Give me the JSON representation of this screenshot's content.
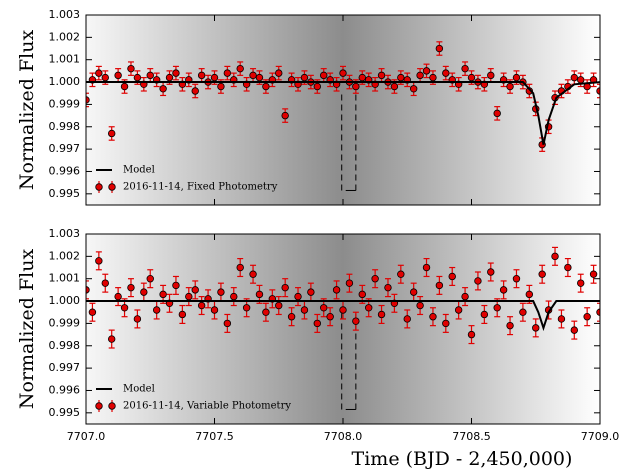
{
  "chart_data": [
    {
      "type": "scatter",
      "ylabel": "Normalized Flux",
      "xlim": [
        7707.0,
        7709.0
      ],
      "xticks": [
        7707,
        7707.5,
        7708,
        7708.5,
        7709
      ],
      "ylim": [
        0.9945,
        1.003
      ],
      "yticks": [
        0.995,
        0.996,
        0.997,
        0.998,
        0.999,
        {
          "value": 1,
          "label": "1.000"
        },
        1.001,
        1.002,
        1.003
      ],
      "window": {
        "x": [
          7707.995,
          7708.05
        ],
        "y": [
          0.99515,
          0.9995
        ]
      },
      "legend": "lower left",
      "series": [
        {
          "name": "Model",
          "kind": "line",
          "color": "#000000",
          "x": [
            7707.0,
            7708.7,
            7708.74,
            7708.76,
            7708.78,
            7708.8,
            7708.83,
            7708.9,
            7709.0
          ],
          "values": [
            1.0,
            1.0,
            0.9995,
            0.9985,
            0.9972,
            0.9983,
            0.9993,
            0.9999,
            1.0
          ]
        },
        {
          "name": "2016-11-14, Fixed Photometry",
          "kind": "points",
          "color": "#e00000",
          "error": 0.0003,
          "x": [
            7707.0,
            7707.025,
            7707.05,
            7707.075,
            7707.1,
            7707.125,
            7707.15,
            7707.175,
            7707.2,
            7707.225,
            7707.25,
            7707.275,
            7707.3,
            7707.325,
            7707.35,
            7707.375,
            7707.4,
            7707.425,
            7707.45,
            7707.475,
            7707.5,
            7707.525,
            7707.55,
            7707.575,
            7707.6,
            7707.625,
            7707.65,
            7707.675,
            7707.7,
            7707.725,
            7707.75,
            7707.775,
            7707.8,
            7707.825,
            7707.85,
            7707.875,
            7707.9,
            7707.925,
            7707.95,
            7707.975,
            7708.0,
            7708.025,
            7708.05,
            7708.075,
            7708.1,
            7708.125,
            7708.15,
            7708.175,
            7708.2,
            7708.225,
            7708.25,
            7708.275,
            7708.3,
            7708.325,
            7708.35,
            7708.375,
            7708.4,
            7708.425,
            7708.45,
            7708.475,
            7708.5,
            7708.525,
            7708.55,
            7708.575,
            7708.6,
            7708.625,
            7708.65,
            7708.675,
            7708.7,
            7708.725,
            7708.75,
            7708.775,
            7708.8,
            7708.825,
            7708.85,
            7708.875,
            7708.9,
            7708.925,
            7708.95,
            7708.975,
            7709.0
          ],
          "values": [
            0.9992,
            1.0001,
            1.0004,
            1.0002,
            0.9977,
            1.0003,
            0.9998,
            1.0006,
            1.0002,
            0.9999,
            1.0003,
            1.0001,
            0.9997,
            1.0002,
            1.0004,
            0.9999,
            1.0001,
            0.9996,
            1.0003,
            1.0,
            1.0002,
            0.9998,
            1.0004,
            1.0001,
            1.0006,
            0.9999,
            1.0003,
            1.0002,
            0.9998,
            1.0001,
            1.0004,
            0.9985,
            1.0001,
            0.9999,
            1.0002,
            1.0,
            0.9998,
            1.0003,
            1.0001,
            0.9999,
            1.0004,
            1.0,
            0.9998,
            1.0002,
            1.0001,
            0.9999,
            1.0003,
            1.0,
            0.9998,
            1.0002,
            1.0001,
            0.9997,
            1.0003,
            1.0005,
            1.0002,
            1.0015,
            1.0004,
            1.0001,
            0.9999,
            1.0006,
            1.0002,
            1.0,
            0.9999,
            1.0003,
            0.9986,
            1.0001,
            0.9998,
            1.0002,
            1.0,
            0.9996,
            0.9988,
            0.9972,
            0.998,
            0.9993,
            0.9996,
            0.9998,
            1.0002,
            1.0001,
            0.9998,
            1.0001,
            0.9996
          ]
        }
      ]
    },
    {
      "type": "scatter",
      "ylabel": "Normalized Flux",
      "xlabel": "Time (BJD - 2,450,000)",
      "xlim": [
        7707.0,
        7709.0
      ],
      "xticks": [
        {
          "value": 7707,
          "label": "7707.0"
        },
        {
          "value": 7707.5,
          "label": "7707.5"
        },
        {
          "value": 7708,
          "label": "7708.0"
        },
        {
          "value": 7708.5,
          "label": "7708.5"
        },
        {
          "value": 7709,
          "label": "7709.0"
        }
      ],
      "ylim": [
        0.9945,
        1.003
      ],
      "yticks": [
        0.995,
        0.996,
        0.997,
        0.998,
        0.999,
        {
          "value": 1,
          "label": "1.000"
        },
        1.001,
        1.002,
        1.003
      ],
      "window": {
        "x": [
          7707.995,
          7708.05
        ],
        "y": [
          0.99515,
          0.9995
        ]
      },
      "legend": "lower left",
      "series": [
        {
          "name": "Model",
          "kind": "line",
          "color": "#000000",
          "x": [
            7707.0,
            7708.7,
            7708.74,
            7708.76,
            7708.78,
            7708.8,
            7708.83,
            7708.9,
            7709.0
          ],
          "values": [
            1.0,
            1.0,
            1.0,
            0.9995,
            0.9988,
            0.9995,
            1.0,
            1.0,
            1.0
          ]
        },
        {
          "name": "2016-11-14, Variable Photometry",
          "kind": "points",
          "color": "#e00000",
          "error": 0.0004,
          "x": [
            7707.0,
            7707.025,
            7707.05,
            7707.075,
            7707.1,
            7707.125,
            7707.15,
            7707.175,
            7707.2,
            7707.225,
            7707.25,
            7707.275,
            7707.3,
            7707.325,
            7707.35,
            7707.375,
            7707.4,
            7707.425,
            7707.45,
            7707.475,
            7707.5,
            7707.525,
            7707.55,
            7707.575,
            7707.6,
            7707.625,
            7707.65,
            7707.675,
            7707.7,
            7707.725,
            7707.75,
            7707.775,
            7707.8,
            7707.825,
            7707.85,
            7707.875,
            7707.9,
            7707.925,
            7707.95,
            7707.975,
            7708.0,
            7708.025,
            7708.05,
            7708.075,
            7708.1,
            7708.125,
            7708.15,
            7708.175,
            7708.2,
            7708.225,
            7708.25,
            7708.275,
            7708.3,
            7708.325,
            7708.35,
            7708.375,
            7708.4,
            7708.425,
            7708.45,
            7708.475,
            7708.5,
            7708.525,
            7708.55,
            7708.575,
            7708.6,
            7708.625,
            7708.65,
            7708.675,
            7708.7,
            7708.725,
            7708.75,
            7708.775,
            7708.8,
            7708.825,
            7708.85,
            7708.875,
            7708.9,
            7708.925,
            7708.95,
            7708.975,
            7709.0
          ],
          "values": [
            1.0005,
            0.9995,
            1.0018,
            1.0008,
            0.9983,
            1.0002,
            0.9997,
            1.0006,
            0.9992,
            1.0004,
            1.001,
            0.9996,
            1.0003,
            0.9999,
            1.0007,
            0.9994,
            1.0002,
            1.0005,
            0.9998,
            1.0001,
            0.9996,
            1.0004,
            0.999,
            1.0002,
            1.0015,
            0.9997,
            1.0012,
            1.0003,
            0.9995,
            1.0001,
            0.9998,
            1.0006,
            0.9993,
            1.0002,
            0.9996,
            1.0004,
            0.999,
            0.9997,
            0.9993,
            1.0005,
            0.9996,
            1.0008,
            0.9991,
            1.0003,
            0.9997,
            1.001,
            0.9994,
            1.0006,
            0.9999,
            1.0012,
            0.9992,
            1.0004,
            0.9998,
            1.0015,
            0.9993,
            1.0007,
            0.999,
            1.0011,
            0.9996,
            1.0002,
            0.9985,
            1.0009,
            0.9994,
            1.0013,
            0.9997,
            1.0005,
            0.9989,
            1.001,
            0.9995,
            1.0003,
            0.9988,
            1.0012,
            0.9996,
            1.002,
            0.9992,
            1.0015,
            0.9987,
            1.0008,
            0.9993,
            1.0012,
            0.9995
          ]
        }
      ]
    }
  ]
}
